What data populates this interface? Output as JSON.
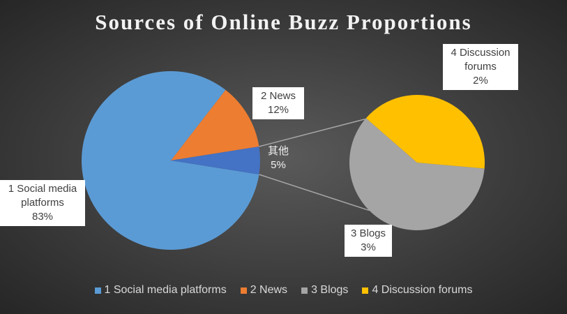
{
  "chart_data": {
    "type": "pie-of-pie",
    "title": "Sources of Online Buzz Proportions",
    "categories": [
      "1 Social media platforms",
      "2 News",
      "3 Blogs",
      "4 Discussion forums"
    ],
    "values": [
      83,
      12,
      3,
      2
    ],
    "value_labels": [
      "83%",
      "12%",
      "3%",
      "2%"
    ],
    "colors": [
      "#5b9bd5",
      "#ed7d31",
      "#a5a5a5",
      "#ffc000"
    ],
    "secondary_count": 2,
    "other": {
      "label": "其他",
      "value": 5,
      "value_label": "5%",
      "color": "#4472c4"
    },
    "legend": "bottom"
  }
}
